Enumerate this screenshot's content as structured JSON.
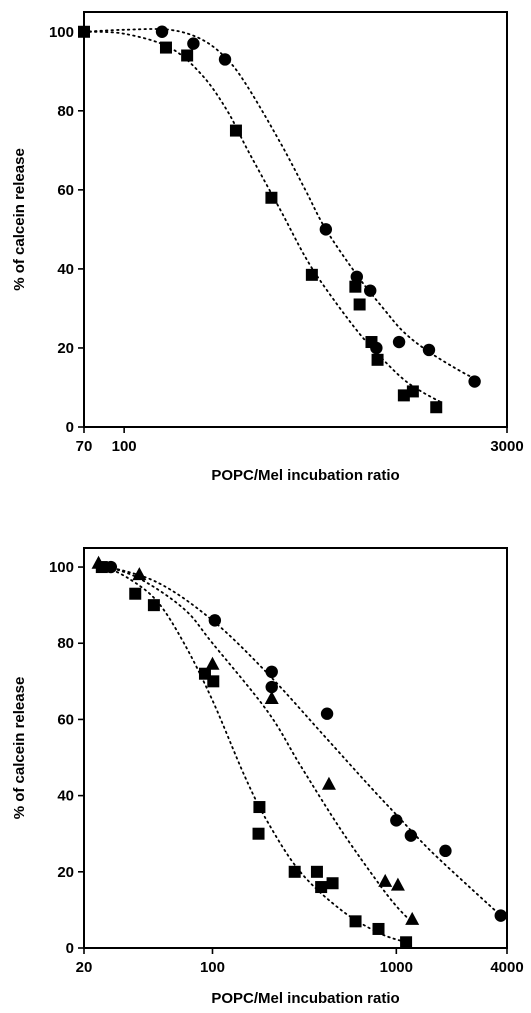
{
  "chart_data": [
    {
      "type": "scatter",
      "x_scale": "log",
      "xlim": [
        70,
        3000
      ],
      "ylim": [
        0,
        105
      ],
      "x_ticks": [
        70,
        100,
        3000
      ],
      "x_tick_labels": [
        "70",
        "100",
        "3000"
      ],
      "y_ticks": [
        0,
        20,
        40,
        60,
        80,
        100
      ],
      "y_tick_labels": [
        "0",
        "20",
        "40",
        "60",
        "80",
        "100"
      ],
      "xlabel": "POPC/Mel incubation ratio",
      "ylabel": "% of calcein release",
      "grid": false,
      "series": [
        {
          "marker": "circle",
          "points": [
            [
              140,
              100
            ],
            [
              185,
              97
            ],
            [
              245,
              93
            ],
            [
              600,
              50
            ],
            [
              790,
              38
            ],
            [
              890,
              34.5
            ],
            [
              940,
              20
            ],
            [
              1150,
              21.5
            ],
            [
              1500,
              19.5
            ],
            [
              2250,
              11.5
            ]
          ],
          "fit": [
            [
              70,
              100
            ],
            [
              100,
              100.5
            ],
            [
              150,
              100.5
            ],
            [
              200,
              98
            ],
            [
              250,
              93
            ],
            [
              300,
              86
            ],
            [
              400,
              72
            ],
            [
              500,
              60
            ],
            [
              600,
              50
            ],
            [
              800,
              38
            ],
            [
              1000,
              30
            ],
            [
              1200,
              24
            ],
            [
              1500,
              19
            ],
            [
              2000,
              14
            ],
            [
              2300,
              12
            ]
          ]
        },
        {
          "marker": "square",
          "points": [
            [
              70,
              100
            ],
            [
              145,
              96
            ],
            [
              175,
              94
            ],
            [
              270,
              75
            ],
            [
              370,
              58
            ],
            [
              530,
              38.5
            ],
            [
              780,
              35.5
            ],
            [
              810,
              31
            ],
            [
              900,
              21.5
            ],
            [
              950,
              17
            ],
            [
              1200,
              8
            ],
            [
              1300,
              9
            ],
            [
              1600,
              5
            ]
          ],
          "fit": [
            [
              70,
              100
            ],
            [
              100,
              99.5
            ],
            [
              150,
              96
            ],
            [
              200,
              89
            ],
            [
              250,
              80
            ],
            [
              300,
              70
            ],
            [
              400,
              55
            ],
            [
              500,
              43
            ],
            [
              600,
              35
            ],
            [
              800,
              24
            ],
            [
              1000,
              17
            ],
            [
              1200,
              12
            ],
            [
              1400,
              9
            ],
            [
              1700,
              6
            ]
          ]
        }
      ]
    },
    {
      "type": "scatter",
      "x_scale": "log",
      "xlim": [
        20,
        4000
      ],
      "ylim": [
        0,
        105
      ],
      "x_ticks": [
        20,
        100,
        1000,
        4000
      ],
      "x_tick_labels": [
        "20",
        "100",
        "1000",
        "4000"
      ],
      "y_ticks": [
        0,
        20,
        40,
        60,
        80,
        100
      ],
      "y_tick_labels": [
        "0",
        "20",
        "40",
        "60",
        "80",
        "100"
      ],
      "xlabel": "POPC/Mel incubation ratio",
      "ylabel": "% of calcein release",
      "grid": false,
      "series": [
        {
          "marker": "circle",
          "points": [
            [
              28,
              100
            ],
            [
              103,
              86
            ],
            [
              210,
              72.5
            ],
            [
              210,
              68.5
            ],
            [
              420,
              61.5
            ],
            [
              1000,
              33.5
            ],
            [
              1200,
              29.5
            ],
            [
              1850,
              25.5
            ],
            [
              3700,
              8.5
            ]
          ],
          "fit": [
            [
              25,
              100.5
            ],
            [
              50,
              96
            ],
            [
              100,
              86
            ],
            [
              200,
              72
            ],
            [
              400,
              56
            ],
            [
              700,
              43
            ],
            [
              1000,
              35
            ],
            [
              1500,
              26
            ],
            [
              2500,
              16
            ],
            [
              3800,
              8
            ]
          ]
        },
        {
          "marker": "triangle",
          "points": [
            [
              24,
              101
            ],
            [
              40,
              98
            ],
            [
              100,
              74.5
            ],
            [
              210,
              65.5
            ],
            [
              430,
              43
            ],
            [
              870,
              17.5
            ],
            [
              1020,
              16.5
            ],
            [
              1220,
              7.5
            ]
          ],
          "fit": [
            [
              25,
              100.5
            ],
            [
              40,
              97
            ],
            [
              70,
              89
            ],
            [
              100,
              80
            ],
            [
              200,
              62
            ],
            [
              300,
              48
            ],
            [
              500,
              31
            ],
            [
              800,
              17
            ],
            [
              1000,
              11
            ],
            [
              1200,
              7
            ]
          ]
        },
        {
          "marker": "square",
          "points": [
            [
              25,
              100
            ],
            [
              38,
              93
            ],
            [
              48,
              90
            ],
            [
              91,
              72
            ],
            [
              101,
              70
            ],
            [
              180,
              37
            ],
            [
              178,
              30
            ],
            [
              280,
              20
            ],
            [
              370,
              20
            ],
            [
              390,
              16
            ],
            [
              450,
              17
            ],
            [
              600,
              7
            ],
            [
              800,
              5
            ],
            [
              1130,
              1.5
            ]
          ],
          "fit": [
            [
              25,
              100.5
            ],
            [
              35,
              97
            ],
            [
              50,
              91
            ],
            [
              70,
              80
            ],
            [
              100,
              65
            ],
            [
              150,
              45
            ],
            [
              200,
              33
            ],
            [
              300,
              20
            ],
            [
              500,
              10
            ],
            [
              800,
              4
            ],
            [
              1130,
              1.5
            ]
          ]
        }
      ]
    }
  ]
}
